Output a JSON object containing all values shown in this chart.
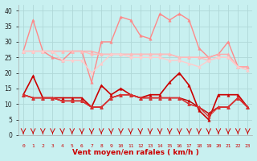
{
  "xlabel": "Vent moyen/en rafales ( km/h )",
  "background_color": "#c8f0f0",
  "grid_color": "#b0d8d8",
  "ylim": [
    0,
    42
  ],
  "xlim": [
    -0.5,
    23.5
  ],
  "yticks": [
    0,
    5,
    10,
    15,
    20,
    25,
    30,
    35,
    40
  ],
  "series": [
    {
      "name": "rafales_top",
      "color": "#ff8888",
      "linewidth": 1.0,
      "marker": "^",
      "markersize": 2.5,
      "y": [
        27,
        37,
        27,
        25,
        24,
        27,
        27,
        17,
        30,
        30,
        38,
        37,
        32,
        31,
        39,
        37,
        39,
        37,
        28,
        25,
        26,
        30,
        22,
        22
      ]
    },
    {
      "name": "moyen_line1",
      "color": "#ffaaaa",
      "linewidth": 1.0,
      "marker": "^",
      "markersize": 2.5,
      "y": [
        27,
        27,
        27,
        27,
        27,
        27,
        27,
        27,
        26,
        26,
        26,
        26,
        26,
        26,
        26,
        26,
        25,
        25,
        25,
        25,
        26,
        26,
        22,
        22
      ]
    },
    {
      "name": "moyen_line2",
      "color": "#ffbbbb",
      "linewidth": 1.0,
      "marker": "^",
      "markersize": 2.5,
      "y": [
        27,
        27,
        27,
        27,
        27,
        27,
        27,
        26,
        26,
        26,
        26,
        26,
        26,
        26,
        26,
        26,
        25,
        25,
        25,
        24,
        25,
        25,
        22,
        21
      ]
    },
    {
      "name": "moyen_line3",
      "color": "#ffcccc",
      "linewidth": 1.0,
      "marker": "^",
      "markersize": 2.5,
      "y": [
        27,
        27,
        27,
        27,
        24,
        24,
        24,
        20,
        23,
        26,
        26,
        25,
        25,
        25,
        25,
        24,
        24,
        23,
        22,
        24,
        25,
        25,
        22,
        21
      ]
    },
    {
      "name": "vent_main",
      "color": "#cc0000",
      "linewidth": 1.2,
      "marker": "^",
      "markersize": 2.5,
      "y": [
        13,
        19,
        12,
        12,
        12,
        12,
        12,
        9,
        16,
        13,
        15,
        13,
        12,
        13,
        13,
        17,
        20,
        16,
        8,
        5,
        13,
        13,
        13,
        9
      ]
    },
    {
      "name": "vent_line2",
      "color": "#bb0000",
      "linewidth": 1.0,
      "marker": "^",
      "markersize": 2.5,
      "y": [
        13,
        12,
        12,
        12,
        11,
        11,
        11,
        9,
        9,
        12,
        13,
        13,
        12,
        12,
        12,
        12,
        12,
        11,
        9,
        7,
        9,
        9,
        12,
        9
      ]
    },
    {
      "name": "vent_line3",
      "color": "#cc2222",
      "linewidth": 1.0,
      "marker": "^",
      "markersize": 2.5,
      "y": [
        13,
        12,
        12,
        12,
        11,
        11,
        11,
        9,
        9,
        12,
        13,
        13,
        12,
        12,
        12,
        12,
        12,
        10,
        9,
        7,
        9,
        9,
        12,
        9
      ]
    },
    {
      "name": "vent_line4",
      "color": "#dd3333",
      "linewidth": 0.9,
      "marker": "^",
      "markersize": 2.5,
      "y": [
        13,
        12,
        12,
        12,
        11,
        11,
        11,
        9,
        9,
        12,
        13,
        13,
        12,
        12,
        12,
        12,
        12,
        10,
        9,
        6,
        9,
        9,
        12,
        9
      ]
    }
  ]
}
